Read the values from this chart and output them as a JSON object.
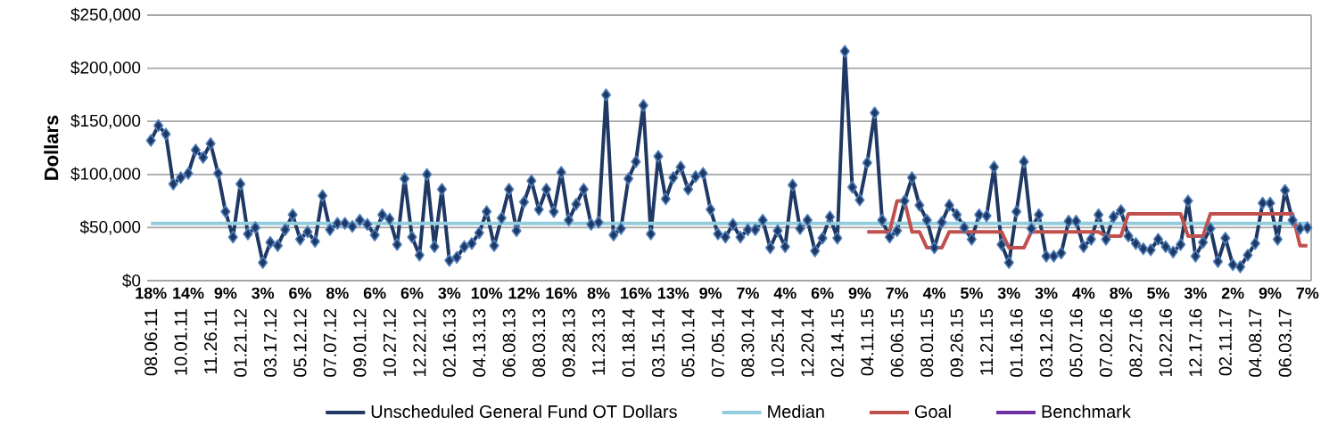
{
  "chart_data": {
    "type": "line",
    "ylabel": "Dollars",
    "categories": [
      "08.06.11",
      null,
      null,
      null,
      "10.01.11",
      null,
      null,
      null,
      "11.26.11",
      null,
      null,
      null,
      "01.21.12",
      null,
      null,
      null,
      "03.17.12",
      null,
      null,
      null,
      "05.12.12",
      null,
      null,
      null,
      "07.07.12",
      null,
      null,
      null,
      "09.01.12",
      null,
      null,
      null,
      "10.27.12",
      null,
      null,
      null,
      "12.22.12",
      null,
      null,
      null,
      "02.16.13",
      null,
      null,
      null,
      "04.13.13",
      null,
      null,
      null,
      "06.08.13",
      null,
      null,
      null,
      "08.03.13",
      null,
      null,
      null,
      "09.28.13",
      null,
      null,
      null,
      "11.23.13",
      null,
      null,
      null,
      "01.18.14",
      null,
      null,
      null,
      "03.15.14",
      null,
      null,
      null,
      "05.10.14",
      null,
      null,
      null,
      "07.05.14",
      null,
      null,
      null,
      "08.30.14",
      null,
      null,
      null,
      "10.25.14",
      null,
      null,
      null,
      "12.20.14",
      null,
      null,
      null,
      "02.14.15",
      null,
      null,
      null,
      "04.11.15",
      null,
      null,
      null,
      "06.06.15",
      null,
      null,
      null,
      "08.01.15",
      null,
      null,
      null,
      "09.26.15",
      null,
      null,
      null,
      "11.21.15",
      null,
      null,
      null,
      "01.16.16",
      null,
      null,
      null,
      "03.12.16",
      null,
      null,
      null,
      "05.07.16",
      null,
      null,
      null,
      "07.02.16",
      null,
      null,
      null,
      "08.27.16",
      null,
      null,
      null,
      "10.22.16",
      null,
      null,
      null,
      "12.17.16",
      null,
      null,
      null,
      "02.11.17",
      null,
      null,
      null,
      "04.08.17",
      null,
      null,
      null,
      "06.03.17",
      null,
      null,
      null
    ],
    "ylim": [
      0,
      250000
    ],
    "yticks": [
      {
        "value": 0,
        "label": "$0"
      },
      {
        "value": 50000,
        "label": "$50,000"
      },
      {
        "value": 100000,
        "label": "$100,000"
      },
      {
        "value": 150000,
        "label": "$150,000"
      },
      {
        "value": 200000,
        "label": "$200,000"
      },
      {
        "value": 250000,
        "label": "$250,000"
      }
    ],
    "grid": "y",
    "legend": "bottom",
    "series": [
      {
        "name": "Unscheduled General Fund OT Dollars",
        "color": "#1f3864",
        "marker": "diamond",
        "values": [
          132000,
          146000,
          138000,
          91000,
          97000,
          101000,
          123000,
          116000,
          129000,
          101000,
          65000,
          41000,
          91000,
          44000,
          50000,
          17000,
          36000,
          33000,
          48000,
          62000,
          39000,
          46000,
          37000,
          80000,
          48000,
          54000,
          54000,
          51000,
          57000,
          53000,
          43000,
          62000,
          58000,
          34000,
          96000,
          41000,
          24000,
          100000,
          32000,
          86000,
          19000,
          22000,
          32000,
          35000,
          45000,
          65000,
          33000,
          59000,
          86000,
          47000,
          74000,
          94000,
          67000,
          86000,
          65000,
          102000,
          57000,
          72000,
          86000,
          53000,
          55000,
          175000,
          43000,
          49000,
          96000,
          112000,
          165000,
          44000,
          117000,
          77000,
          97000,
          107000,
          86000,
          98000,
          101000,
          67000,
          44000,
          41000,
          53000,
          41000,
          48000,
          48000,
          57000,
          31000,
          47000,
          32000,
          90000,
          49000,
          57000,
          28000,
          40000,
          60000,
          40000,
          216000,
          88000,
          76000,
          111000,
          158000,
          57000,
          41000,
          47000,
          75000,
          97000,
          71000,
          57000,
          31000,
          55000,
          71000,
          62000,
          50000,
          39000,
          62000,
          61000,
          107000,
          34000,
          17000,
          65000,
          112000,
          49000,
          62000,
          23000,
          23000,
          26000,
          56000,
          56000,
          32000,
          39000,
          62000,
          39000,
          60000,
          66000,
          42000,
          35000,
          30000,
          29000,
          39000,
          32000,
          27000,
          34000,
          75000,
          23000,
          36000,
          49000,
          18000,
          40000,
          15000,
          13000,
          24000,
          35000,
          73000,
          73000,
          39000,
          85000,
          57000,
          49000,
          50000
        ]
      },
      {
        "name": "Median",
        "color": "#93cddd",
        "values": [
          54000,
          54000,
          54000,
          54000,
          54000,
          54000,
          54000,
          54000,
          54000,
          54000,
          54000,
          54000,
          54000,
          54000,
          54000,
          54000,
          54000,
          54000,
          54000,
          54000,
          54000,
          54000,
          54000,
          54000,
          54000,
          54000,
          54000,
          54000,
          54000,
          54000,
          54000,
          54000,
          54000,
          54000,
          54000,
          54000,
          54000,
          54000,
          54000,
          54000,
          54000,
          54000,
          54000,
          54000,
          54000,
          54000,
          54000,
          54000,
          54000,
          54000,
          54000,
          54000,
          54000,
          54000,
          54000,
          54000,
          54000,
          54000,
          54000,
          54000,
          54000,
          54000,
          54000,
          54000,
          54000,
          54000,
          54000,
          54000,
          54000,
          54000,
          54000,
          54000,
          54000,
          54000,
          54000,
          54000,
          54000,
          54000,
          54000,
          54000,
          54000,
          54000,
          54000,
          54000,
          54000,
          54000,
          54000,
          54000,
          54000,
          54000,
          54000,
          54000,
          54000,
          54000,
          54000,
          54000,
          54000,
          54000,
          54000,
          54000,
          54000,
          54000,
          54000,
          54000,
          54000,
          54000,
          54000,
          54000,
          54000,
          54000,
          54000,
          54000,
          54000,
          54000,
          54000,
          54000,
          54000,
          54000,
          54000,
          54000,
          54000,
          54000,
          54000,
          54000,
          54000,
          54000,
          54000,
          54000,
          54000,
          54000,
          54000,
          54000,
          54000,
          54000,
          54000,
          54000,
          54000,
          54000,
          54000,
          54000,
          54000,
          54000,
          54000,
          54000,
          54000,
          54000,
          54000,
          54000,
          54000,
          54000,
          54000,
          54000,
          54000,
          54000,
          54000,
          54000
        ]
      },
      {
        "name": "Goal",
        "color": "#c0504d",
        "values": [
          null,
          null,
          null,
          null,
          null,
          null,
          null,
          null,
          null,
          null,
          null,
          null,
          null,
          null,
          null,
          null,
          null,
          null,
          null,
          null,
          null,
          null,
          null,
          null,
          null,
          null,
          null,
          null,
          null,
          null,
          null,
          null,
          null,
          null,
          null,
          null,
          null,
          null,
          null,
          null,
          null,
          null,
          null,
          null,
          null,
          null,
          null,
          null,
          null,
          null,
          null,
          null,
          null,
          null,
          null,
          null,
          null,
          null,
          null,
          null,
          null,
          null,
          null,
          null,
          null,
          null,
          null,
          null,
          null,
          null,
          null,
          null,
          null,
          null,
          null,
          null,
          null,
          null,
          null,
          null,
          null,
          null,
          null,
          null,
          null,
          null,
          null,
          null,
          null,
          null,
          null,
          null,
          null,
          null,
          null,
          null,
          46000,
          46000,
          46000,
          46000,
          75000,
          75000,
          46000,
          46000,
          31000,
          31000,
          31000,
          46000,
          46000,
          46000,
          46000,
          46000,
          46000,
          46000,
          46000,
          31000,
          31000,
          31000,
          46000,
          46000,
          46000,
          46000,
          46000,
          46000,
          46000,
          46000,
          46000,
          46000,
          42000,
          42000,
          42000,
          63000,
          63000,
          63000,
          63000,
          63000,
          63000,
          63000,
          63000,
          42000,
          42000,
          42000,
          63000,
          63000,
          63000,
          63000,
          63000,
          63000,
          63000,
          63000,
          63000,
          63000,
          63000,
          63000,
          33000,
          33000
        ]
      },
      {
        "name": "Benchmark",
        "color": "#7030a0",
        "values": [
          null,
          null,
          null,
          null,
          null,
          null,
          null,
          null,
          null,
          null,
          null,
          null,
          null,
          null,
          null,
          null,
          null,
          null,
          null,
          null,
          null,
          null,
          null,
          null,
          null,
          null,
          null,
          null,
          null,
          null,
          null,
          null,
          null,
          null,
          null,
          null,
          null,
          null,
          null,
          null,
          null,
          null,
          null,
          null,
          null,
          null,
          null,
          null,
          null,
          null,
          null,
          null,
          null,
          null,
          null,
          null,
          null,
          null,
          null,
          null,
          null,
          null,
          null,
          null,
          null,
          null,
          null,
          null,
          null,
          null,
          null,
          null,
          null,
          null,
          null,
          null,
          null,
          null,
          null,
          null,
          null,
          null,
          null,
          null,
          null,
          null,
          null,
          null,
          null,
          null,
          null,
          null,
          null,
          null,
          null,
          null,
          null,
          null,
          null,
          null,
          null,
          null,
          null,
          null,
          null,
          null,
          null,
          null,
          null,
          null,
          null,
          null,
          null,
          null,
          null,
          null,
          null,
          null,
          null,
          null,
          null,
          null,
          null,
          null,
          null,
          null,
          null,
          null,
          null,
          null,
          null,
          null,
          null,
          null,
          null,
          null,
          null,
          null,
          null,
          null,
          null,
          null,
          null,
          null,
          null,
          null,
          null,
          null,
          null,
          null,
          null,
          null,
          null,
          null,
          null,
          null
        ]
      }
    ],
    "annotations": [
      "18%",
      "14%",
      "9%",
      "3%",
      "6%",
      "8%",
      "6%",
      "6%",
      "3%",
      "10%",
      "12%",
      "16%",
      "8%",
      "16%",
      "13%",
      "9%",
      "7%",
      "4%",
      "6%",
      "9%",
      "7%",
      "4%",
      "5%",
      "3%",
      "3%",
      "4%",
      "8%",
      "5%",
      "3%",
      "2%",
      "9%",
      "7%"
    ]
  }
}
